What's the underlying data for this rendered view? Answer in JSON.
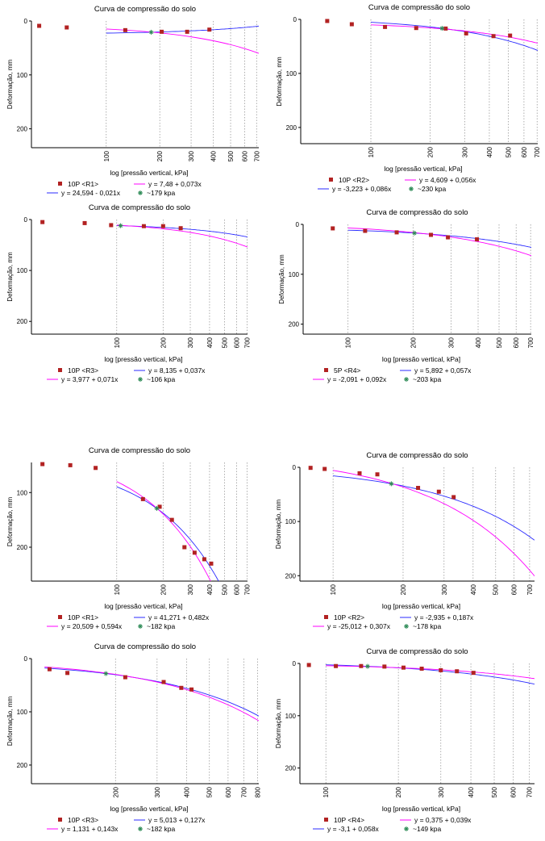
{
  "colors": {
    "points": "#b22222",
    "blue": "#2b2bff",
    "magenta": "#ff00ff",
    "star": "#2e8b57",
    "grid": "#9a9a9a"
  },
  "chart_data": [
    {
      "type": "scatter",
      "title": "Curva de compressão do solo",
      "xlabel": "log [pressão vertical, kPa]",
      "ylabel": "Deformação, mm",
      "xscale": "log",
      "xlim": [
        38,
        720
      ],
      "ylim": [
        0,
        235
      ],
      "y_inverted": true,
      "xticks": [
        100,
        200,
        300,
        400,
        500,
        600,
        700
      ],
      "yticks": [
        0,
        100,
        200
      ],
      "points": {
        "name": "10P <R1>",
        "x": [
          42,
          60,
          128,
          205,
          285,
          380
        ],
        "y": [
          9,
          12,
          17,
          20,
          20,
          16
        ]
      },
      "star_x": 179,
      "fits": [
        {
          "label": "y = 24,594 - 0,021x",
          "color": "blue",
          "a": 24.594,
          "b": -0.021
        },
        {
          "label": "y = 7,48 + 0,073x",
          "color": "magenta",
          "a": 7.48,
          "b": 0.073
        }
      ],
      "estimate": "~179 kpa"
    },
    {
      "type": "scatter",
      "title": "Curva de compressão do solo",
      "xlabel": "log [pressão vertical, kPa]",
      "ylabel": "Deformação, mm",
      "xscale": "log",
      "xlim": [
        44,
        705
      ],
      "ylim": [
        0,
        230
      ],
      "y_inverted": true,
      "xticks": [
        100,
        200,
        300,
        400,
        500,
        600,
        700
      ],
      "yticks": [
        0,
        100,
        200
      ],
      "points": {
        "name": "10P <R2>",
        "x": [
          60,
          80,
          118,
          170,
          240,
          305,
          420,
          510
        ],
        "y": [
          3,
          9,
          14,
          16,
          17,
          26,
          31,
          30
        ]
      },
      "star_x": 230,
      "fits": [
        {
          "label": "y = -3,223 + 0,086x",
          "color": "blue",
          "a": -3.223,
          "b": 0.086
        },
        {
          "label": "y = 4,609 + 0,056x",
          "color": "magenta",
          "a": 4.609,
          "b": 0.056
        }
      ],
      "estimate": "~230 kpa"
    },
    {
      "type": "scatter",
      "title": "Curva de compressão do solo",
      "xlabel": "log [pressão vertical, kPa]",
      "ylabel": "Deformação, mm",
      "xscale": "log",
      "xlim": [
        28,
        705
      ],
      "ylim": [
        0,
        225
      ],
      "y_inverted": true,
      "xticks": [
        100,
        200,
        300,
        400,
        500,
        600,
        700
      ],
      "yticks": [
        0,
        100,
        200
      ],
      "points": {
        "name": "10P <R3>",
        "x": [
          33,
          62,
          92,
          150,
          200,
          260
        ],
        "y": [
          5,
          7,
          11,
          13,
          13,
          17
        ]
      },
      "star_x": 106,
      "fits": [
        {
          "label": "y = 8,135 + 0,037x",
          "color": "blue",
          "a": 8.135,
          "b": 0.037
        },
        {
          "label": "y = 3,977 + 0,071x",
          "color": "magenta",
          "a": 3.977,
          "b": 0.071
        }
      ],
      "estimate": "~106 kpa"
    },
    {
      "type": "scatter",
      "title": "Curva de compressão do solo",
      "xlabel": "log [pressão vertical, kPa]",
      "ylabel": "Deformação, mm",
      "xscale": "log",
      "xlim": [
        62,
        705
      ],
      "ylim": [
        0,
        220
      ],
      "y_inverted": true,
      "xticks": [
        100,
        200,
        300,
        400,
        500,
        600,
        700
      ],
      "yticks": [
        0,
        100,
        200
      ],
      "points": {
        "name": "5P <R4>",
        "x": [
          85,
          120,
          168,
          242,
          290,
          395
        ],
        "y": [
          8,
          13,
          16,
          21,
          26,
          30
        ]
      },
      "star_x": 203,
      "fits": [
        {
          "label": "y = 5,892 + 0,057x",
          "color": "blue",
          "a": 5.892,
          "b": 0.057
        },
        {
          "label": "y = -2,091 + 0,092x",
          "color": "magenta",
          "a": -2.091,
          "b": 0.092
        }
      ],
      "estimate": "~203 kpa"
    },
    {
      "type": "scatter",
      "title": "Curva de compressão do solo",
      "xlabel": "log [pressão vertical, kPa]",
      "ylabel": "Deformação, mm",
      "xscale": "log",
      "xlim": [
        28,
        705
      ],
      "ylim": [
        45,
        262
      ],
      "y_inverted": true,
      "xticks": [
        100,
        200,
        300,
        400,
        500,
        600,
        700
      ],
      "yticks": [
        100,
        200
      ],
      "points": {
        "name": "10P <R1>",
        "x": [
          33,
          50,
          73,
          148,
          190,
          228,
          275,
          320,
          370,
          410
        ],
        "y": [
          48,
          50,
          55,
          112,
          126,
          150,
          200,
          210,
          222,
          230
        ]
      },
      "star_x": 182,
      "fits": [
        {
          "label": "y = 41,271 + 0,482x",
          "color": "blue",
          "a": 41.271,
          "b": 0.482
        },
        {
          "label": "y = 20,509 + 0,594x",
          "color": "magenta",
          "a": 20.509,
          "b": 0.594
        }
      ],
      "estimate": "~182 kpa"
    },
    {
      "type": "scatter",
      "title": "Curva de compressão do solo",
      "xlabel": "log [pressão vertical, kPa]",
      "ylabel": "Deformação, mm",
      "xscale": "log",
      "xlim": [
        72,
        735
      ],
      "ylim": [
        0,
        210
      ],
      "y_inverted": true,
      "xticks": [
        100,
        200,
        300,
        400,
        500,
        600,
        700
      ],
      "yticks": [
        0,
        100,
        200
      ],
      "points": {
        "name": "10P <R2>",
        "x": [
          80,
          92,
          130,
          155,
          232,
          285,
          330
        ],
        "y": [
          1,
          3,
          11,
          13,
          38,
          45,
          55
        ]
      },
      "star_x": 178,
      "fits": [
        {
          "label": "y = -2,935 + 0,187x",
          "color": "blue",
          "a": -2.935,
          "b": 0.187
        },
        {
          "label": "y = -25,012 + 0,307x",
          "color": "magenta",
          "a": -25.012,
          "b": 0.307
        }
      ],
      "estimate": "~178 kpa"
    },
    {
      "type": "scatter",
      "title": "Curva de compressão do solo",
      "xlabel": "log [pressão vertical, kPa]",
      "ylabel": "Deformação, mm",
      "xscale": "log",
      "xlim": [
        88,
        810
      ],
      "ylim": [
        0,
        235
      ],
      "y_inverted": true,
      "xticks": [
        200,
        300,
        400,
        500,
        600,
        700,
        800
      ],
      "yticks": [
        0,
        100,
        200
      ],
      "points": {
        "name": "10P <R3>",
        "x": [
          105,
          125,
          220,
          320,
          380,
          420
        ],
        "y": [
          20,
          27,
          35,
          44,
          55,
          58
        ]
      },
      "star_x": 182,
      "fits": [
        {
          "label": "y = 5,013 + 0,127x",
          "color": "blue",
          "a": 5.013,
          "b": 0.127
        },
        {
          "label": "y = 1,131 + 0,143x",
          "color": "magenta",
          "a": 1.131,
          "b": 0.143
        }
      ],
      "estimate": "~182 kpa"
    },
    {
      "type": "scatter",
      "title": "Curva de compressão do solo",
      "xlabel": "log [pressão vertical, kPa]",
      "ylabel": "Deformação, mm",
      "xscale": "log",
      "xlim": [
        78,
        735
      ],
      "ylim": [
        0,
        230
      ],
      "y_inverted": true,
      "xticks": [
        100,
        200,
        300,
        400,
        500,
        600,
        700
      ],
      "yticks": [
        0,
        100,
        200
      ],
      "points": {
        "name": "10P <R4>",
        "x": [
          85,
          110,
          140,
          175,
          210,
          250,
          300,
          350,
          410
        ],
        "y": [
          3,
          5,
          5,
          6,
          8,
          10,
          13,
          15,
          18
        ]
      },
      "star_x": 149,
      "fits": [
        {
          "label": "y = -3,1 + 0,058x",
          "color": "blue",
          "a": -3.1,
          "b": 0.058
        },
        {
          "label": "y = 0,375 + 0,039x",
          "color": "magenta",
          "a": 0.375,
          "b": 0.039
        }
      ],
      "estimate": "~149 kpa"
    }
  ]
}
